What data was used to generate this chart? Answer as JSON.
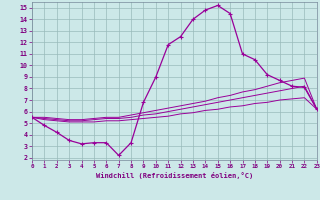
{
  "xlabel": "Windchill (Refroidissement éolien,°C)",
  "bg_color": "#cce8e8",
  "line_color": "#990099",
  "grid_color": "#99bbbb",
  "x_data": [
    0,
    1,
    2,
    3,
    4,
    5,
    6,
    7,
    8,
    9,
    10,
    11,
    12,
    13,
    14,
    15,
    16,
    17,
    18,
    19,
    20,
    21,
    22,
    23
  ],
  "y_main": [
    5.5,
    4.8,
    4.2,
    3.5,
    3.2,
    3.3,
    3.3,
    2.2,
    3.3,
    6.8,
    9.0,
    11.8,
    12.5,
    14.0,
    14.8,
    15.2,
    14.5,
    11.0,
    10.5,
    9.2,
    8.7,
    8.2,
    8.1,
    6.2
  ],
  "y_line1": [
    5.5,
    5.3,
    5.2,
    5.1,
    5.1,
    5.1,
    5.2,
    5.2,
    5.3,
    5.4,
    5.5,
    5.6,
    5.8,
    5.9,
    6.1,
    6.2,
    6.4,
    6.5,
    6.7,
    6.8,
    7.0,
    7.1,
    7.2,
    6.2
  ],
  "y_line2": [
    5.5,
    5.4,
    5.3,
    5.2,
    5.2,
    5.3,
    5.4,
    5.4,
    5.5,
    5.7,
    5.8,
    6.0,
    6.2,
    6.4,
    6.6,
    6.8,
    7.0,
    7.2,
    7.4,
    7.6,
    7.8,
    8.0,
    8.2,
    6.2
  ],
  "y_line3": [
    5.5,
    5.5,
    5.4,
    5.3,
    5.3,
    5.4,
    5.5,
    5.5,
    5.7,
    5.9,
    6.1,
    6.3,
    6.5,
    6.7,
    6.9,
    7.2,
    7.4,
    7.7,
    7.9,
    8.2,
    8.5,
    8.7,
    8.9,
    6.2
  ],
  "xlim": [
    0,
    23
  ],
  "ylim": [
    1.8,
    15.5
  ],
  "yticks": [
    2,
    3,
    4,
    5,
    6,
    7,
    8,
    9,
    10,
    11,
    12,
    13,
    14,
    15
  ],
  "xticks": [
    0,
    1,
    2,
    3,
    4,
    5,
    6,
    7,
    8,
    9,
    10,
    11,
    12,
    13,
    14,
    15,
    16,
    17,
    18,
    19,
    20,
    21,
    22,
    23
  ]
}
